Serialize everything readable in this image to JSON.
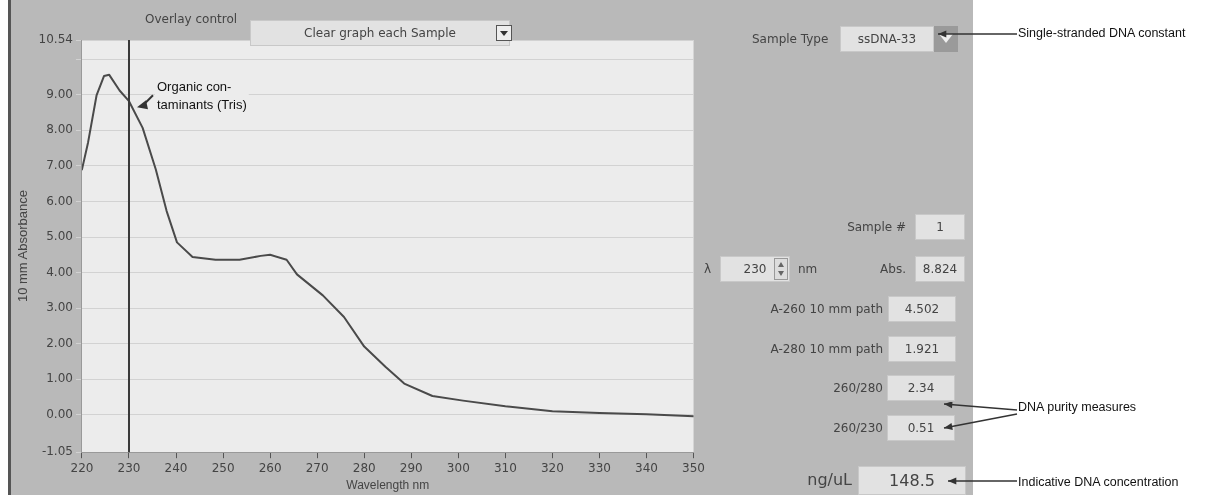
{
  "chart_data": {
    "type": "line",
    "xlabel": "Wavelength nm",
    "ylabel": "10 mm Absorbance",
    "x": [
      220,
      221.3,
      223.1,
      224.7,
      225.8,
      228,
      230,
      232.9,
      235.7,
      238,
      240.2,
      243.5,
      248.4,
      253.5,
      258,
      260,
      263.5,
      265.7,
      271.2,
      275.7,
      280,
      284.5,
      288.5,
      294.5,
      301,
      310,
      320,
      330,
      340,
      350
    ],
    "series": [
      {
        "color": "#4a4a4a",
        "values": [
          6.9,
          7.66,
          8.98,
          9.53,
          9.56,
          9.12,
          8.82,
          8.07,
          6.9,
          5.73,
          4.85,
          4.44,
          4.36,
          4.36,
          4.47,
          4.5,
          4.36,
          3.95,
          3.36,
          2.75,
          1.92,
          1.35,
          0.88,
          0.53,
          0.4,
          0.24,
          0.1,
          0.05,
          0.02,
          -0.04
        ]
      }
    ],
    "xlim": [
      220,
      350
    ],
    "xticks": [
      220,
      230,
      240,
      250,
      260,
      270,
      280,
      290,
      300,
      310,
      320,
      330,
      340,
      350
    ],
    "ylim": [
      -1.05,
      10.54
    ],
    "yticks": [
      -1.05,
      {
        "value": 0,
        "label": "0.00"
      },
      {
        "value": 1,
        "label": "1.00"
      },
      {
        "value": 2,
        "label": "2.00"
      },
      {
        "value": 3,
        "label": "3.00"
      },
      {
        "value": 4,
        "label": "4.00"
      },
      {
        "value": 5,
        "label": "5.00"
      },
      {
        "value": 6,
        "label": "6.00"
      },
      {
        "value": 7,
        "label": "7.00"
      },
      {
        "value": 8,
        "label": "8.00"
      },
      {
        "value": 9,
        "label": "9.00"
      },
      {
        "value": 10,
        "label": null
      },
      10.54
    ],
    "grid": "y",
    "legend": false,
    "marker": "none",
    "line_style": "solid",
    "ref_lines": [
      {
        "axis": "x",
        "value": 230,
        "color": "#3a3a3a"
      }
    ],
    "annotations": [
      {
        "text": "Organic con-\ntaminants (Tris)",
        "x": 230,
        "y": 8.82
      },
      "Overlay control",
      "Clear graph each Sample",
      "Sample Type",
      "ssDNA-33",
      "Single-stranded DNA constant",
      "Sample #",
      "1",
      "λ",
      "230",
      "nm",
      "Abs.",
      "8.824",
      "A-260 10 mm path",
      "4.502",
      "A-280 10 mm path",
      "1.921",
      "260/280",
      "2.34",
      "260/230",
      "0.51",
      "DNA purity measures",
      "ng/uL",
      "148.5",
      "Indicative DNA concentration"
    ]
  }
}
